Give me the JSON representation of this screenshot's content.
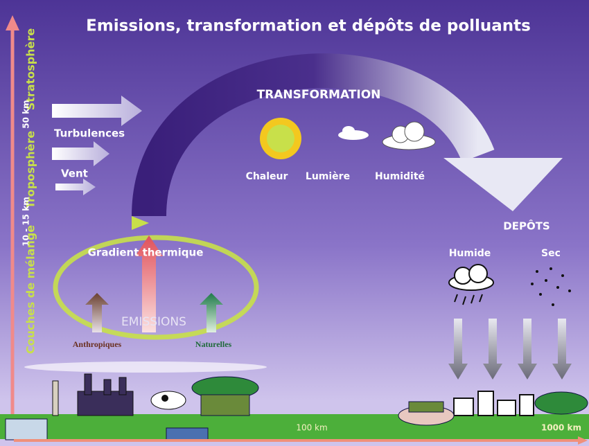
{
  "title": "Emissions, transformation et dépôts de polluants",
  "altitude": {
    "stratosphere": "Stratosphère",
    "stratosphere_height": "50 km",
    "troposphere": "Troposphère",
    "troposphere_height": "10 - 15 km",
    "mixing_layer": "Couches de mélange"
  },
  "transport": {
    "turbulence": "Turbulences",
    "wind": "Vent",
    "thermal_gradient": "Gradient thermique"
  },
  "transformation": {
    "title": "TRANSFORMATION",
    "heat": "Chaleur",
    "light": "Lumière",
    "humidity": "Humidité"
  },
  "emissions": {
    "title": "EMISSIONS",
    "anthropogenic": "Anthropiques",
    "natural": "Naturelles"
  },
  "deposition": {
    "title": "DEPÔTS",
    "wet": "Humide",
    "dry": "Sec"
  },
  "distance": {
    "near": "100 km",
    "far": "1000 km"
  }
}
